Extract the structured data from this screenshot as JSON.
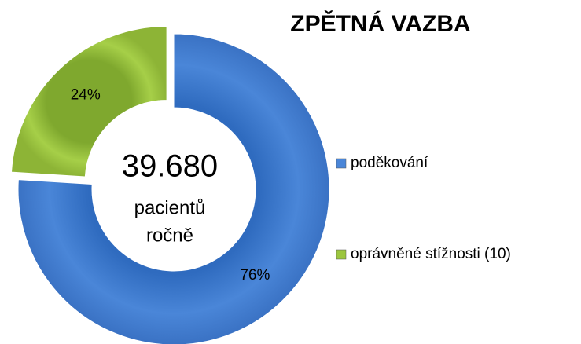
{
  "chart_data": {
    "type": "donut",
    "title": "ZPĚTNÁ VAZBA",
    "categories": [
      "poděkování",
      "oprávněné stížnosti (10)"
    ],
    "values": [
      76,
      24
    ],
    "value_labels": [
      "76%",
      "24%"
    ],
    "colors": [
      "#4a86d8",
      "#9cc63f"
    ],
    "annotations": [
      "39.680",
      "pacientů",
      "ročně"
    ],
    "legend": "right"
  }
}
